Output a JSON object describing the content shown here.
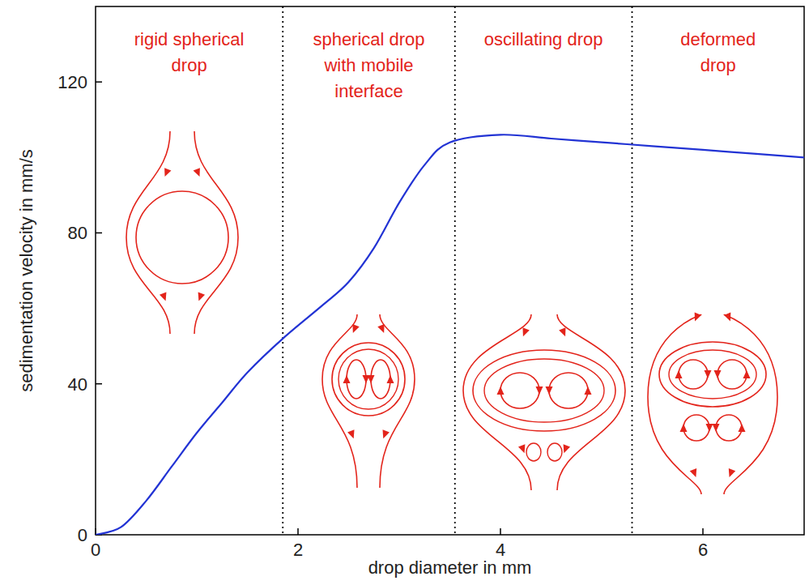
{
  "chart_data": {
    "type": "line",
    "x": [
      0,
      0.25,
      0.5,
      0.75,
      1,
      1.25,
      1.5,
      1.85,
      2.25,
      2.5,
      2.75,
      3,
      3.25,
      3.5,
      4,
      4.5,
      5,
      5.5,
      6,
      6.5,
      7
    ],
    "values": [
      0,
      2,
      9,
      18,
      27,
      35,
      43,
      52,
      61,
      67,
      76,
      88,
      98,
      104,
      106,
      105,
      104,
      103,
      102,
      101,
      100
    ],
    "color": "#2233d4",
    "xlabel": "drop diameter in mm",
    "ylabel": "sedimentation velocity in mm/s",
    "xlim": [
      0,
      7
    ],
    "ylim": [
      0,
      140
    ],
    "xticks": [
      0,
      2,
      4,
      6
    ],
    "yticks": [
      0,
      40,
      80,
      120
    ],
    "boundaries": [
      1.85,
      3.55,
      5.3
    ],
    "regions": [
      {
        "label": [
          "rigid spherical",
          "drop"
        ]
      },
      {
        "label": [
          "spherical drop",
          "with mobile",
          "interface"
        ]
      },
      {
        "label": [
          "oscillating drop"
        ]
      },
      {
        "label": [
          "deformed",
          "drop"
        ]
      }
    ]
  }
}
